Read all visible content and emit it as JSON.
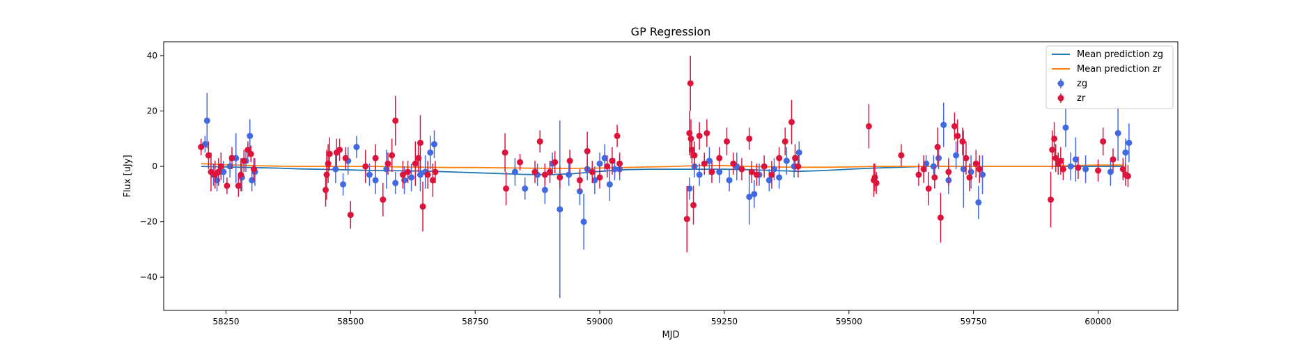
{
  "chart_data": {
    "type": "scatter",
    "title": "GP Regression",
    "xlabel": "MJD",
    "ylabel": "Flux [uJy]",
    "xlim": [
      58125,
      60160
    ],
    "ylim": [
      -52,
      45
    ],
    "xticks": [
      58250,
      58500,
      58750,
      59000,
      59250,
      59500,
      59750,
      60000
    ],
    "yticks": [
      -40,
      -20,
      0,
      20,
      40
    ],
    "grid": false,
    "legend": "top-right",
    "legend_entries": [
      "Mean prediction zg",
      "Mean prediction zr",
      "zg",
      "zr"
    ],
    "colors": {
      "mean_zg": "#1f77b4",
      "mean_zr": "#ff7f0e",
      "zg": "#4169e1",
      "zr": "#dc143c"
    },
    "series": [
      {
        "name": "Mean prediction zg",
        "kind": "line",
        "x": [
          58200,
          58250,
          58300,
          58350,
          58400,
          58450,
          58500,
          58550,
          58600,
          58650,
          58700,
          58750,
          58800,
          58850,
          58900,
          58950,
          59000,
          59050,
          59100,
          59150,
          59200,
          59250,
          59300,
          59350,
          59400,
          59450,
          59500,
          59550,
          59600,
          59650,
          59700,
          59750,
          59800,
          59850,
          59900,
          59950,
          60000,
          60050
        ],
        "y": [
          0,
          -0.2,
          -0.4,
          -0.6,
          -0.9,
          -1.1,
          -1.3,
          -1.5,
          -1.6,
          -1.7,
          -2.0,
          -2.3,
          -2.6,
          -2.9,
          -3.0,
          -2.6,
          -1.8,
          -1.2,
          -1.0,
          -1.0,
          -1.0,
          -1.0,
          -1.2,
          -1.5,
          -1.8,
          -1.5,
          -1.0,
          -0.6,
          -0.3,
          0,
          0,
          0,
          0,
          0,
          0,
          0,
          0,
          0
        ]
      },
      {
        "name": "Mean prediction zr",
        "kind": "line",
        "x": [
          58200,
          58250,
          58300,
          58350,
          58400,
          58450,
          58500,
          58550,
          58600,
          58650,
          58700,
          58750,
          58800,
          58850,
          58900,
          58950,
          59000,
          59050,
          59100,
          59150,
          59200,
          59250,
          59300,
          59350,
          59400,
          59450,
          59500,
          59550,
          59600,
          59650,
          59700,
          59750,
          59800,
          59850,
          59900,
          59950,
          60000,
          60050
        ],
        "y": [
          1.0,
          0.6,
          0.3,
          0.1,
          0.0,
          0.0,
          0.0,
          0.0,
          -0.2,
          -0.3,
          -0.4,
          -0.4,
          -0.5,
          -0.6,
          -0.7,
          -0.7,
          -0.6,
          -0.4,
          -0.2,
          0.0,
          0.3,
          0.3,
          0.0,
          -0.2,
          -0.3,
          -0.3,
          -0.2,
          0.0,
          0.0,
          0.0,
          0.0,
          0.0,
          0.0,
          0.0,
          0.0,
          0.3,
          0.5,
          0.5
        ]
      },
      {
        "name": "zg",
        "kind": "errorbar",
        "x": [
          58208,
          58212,
          58225,
          58232,
          58245,
          58258,
          58270,
          58282,
          58290,
          58298,
          58302,
          58308,
          58470,
          58485,
          58495,
          58512,
          58538,
          58550,
          58572,
          58590,
          58608,
          58622,
          58640,
          58650,
          58660,
          58668,
          58830,
          58850,
          58875,
          58890,
          58905,
          58920,
          58938,
          58960,
          58968,
          58975,
          58990,
          59000,
          59010,
          59020,
          59030,
          59040,
          59180,
          59190,
          59200,
          59220,
          59240,
          59260,
          59275,
          59300,
          59310,
          59320,
          59340,
          59350,
          59360,
          59375,
          59390,
          59400,
          59655,
          59670,
          59680,
          59690,
          59700,
          59715,
          59730,
          59745,
          59760,
          59768,
          59935,
          59945,
          59955,
          59975,
          60025,
          60040,
          60055,
          60062
        ],
        "y": [
          8,
          16.5,
          -3,
          -5,
          -2,
          0,
          3,
          -4,
          2,
          11,
          -5,
          -2,
          -1,
          -6.5,
          2,
          7,
          -3,
          -5,
          -1,
          -6,
          -5,
          -4,
          -3,
          -2,
          5,
          8,
          -2,
          -8,
          -3,
          -8.5,
          1,
          -15.5,
          -3,
          -9,
          -20,
          -1,
          -5,
          1,
          3,
          -6.5,
          -1,
          -1,
          -8,
          0,
          -3,
          2,
          -2,
          -5,
          0,
          -11,
          -10,
          -3,
          -5,
          -1,
          -4,
          2,
          0,
          5,
          1,
          0,
          3,
          15,
          -5,
          4,
          -1,
          -2,
          -13,
          -3,
          14,
          0,
          2.5,
          -1,
          -2,
          12,
          5,
          8.5
        ],
        "yerr": [
          3,
          10,
          4,
          4,
          4,
          4,
          9,
          5,
          4,
          6,
          4,
          5,
          5,
          4,
          5,
          4,
          4,
          5,
          7,
          4,
          5,
          5,
          6,
          6,
          6,
          5,
          5,
          4,
          4,
          5,
          4,
          32,
          4,
          5,
          10,
          4,
          5,
          4,
          5,
          6,
          4,
          4,
          4,
          4,
          4,
          5,
          4,
          4,
          5,
          10,
          5,
          4,
          4,
          4,
          4,
          5,
          4,
          4,
          3,
          4,
          4,
          8,
          5,
          5,
          14,
          6,
          6,
          7,
          7,
          5,
          8,
          5,
          5,
          10,
          5,
          7
        ]
      },
      {
        "name": "zr",
        "kind": "errorbar",
        "x": [
          58200,
          58215,
          58220,
          58228,
          58235,
          58240,
          58252,
          58262,
          58275,
          58280,
          58286,
          58294,
          58300,
          58306,
          58450,
          58452,
          58455,
          58458,
          58472,
          58478,
          58490,
          58500,
          58530,
          58550,
          58565,
          58575,
          58583,
          58590,
          58605,
          58615,
          58630,
          58636,
          58640,
          58645,
          58655,
          58665,
          58670,
          58810,
          58812,
          58840,
          58870,
          58880,
          58890,
          58900,
          58910,
          58920,
          58940,
          58960,
          58975,
          58985,
          59000,
          59015,
          59025,
          59035,
          59040,
          59175,
          59180,
          59182,
          59183,
          59185,
          59188,
          59190,
          59200,
          59210,
          59215,
          59225,
          59240,
          59255,
          59268,
          59285,
          59300,
          59305,
          59315,
          59330,
          59345,
          59360,
          59372,
          59385,
          59392,
          59398,
          59540,
          59550,
          59552,
          59555,
          59605,
          59640,
          59650,
          59660,
          59672,
          59678,
          59684,
          59700,
          59712,
          59718,
          59728,
          59735,
          59742,
          59755,
          59762,
          59905,
          59908,
          59912,
          59915,
          59920,
          59925,
          59930,
          59960,
          60000,
          60010,
          60030,
          60050,
          60055,
          60060
        ],
        "y": [
          7,
          4,
          -2,
          -3,
          -2,
          0,
          -7,
          3,
          -7,
          -3,
          2,
          6,
          4.5,
          -1,
          -8.5,
          -3,
          1,
          4.5,
          5,
          6,
          3,
          -17.5,
          0,
          3,
          -12,
          1,
          4,
          16.5,
          -3,
          -2,
          1,
          3,
          8.5,
          -14.5,
          -3,
          -5,
          -2,
          5,
          -8,
          1.5,
          -2,
          9,
          -3,
          -2,
          1.5,
          -4,
          2,
          -5,
          5.5,
          -2,
          -4,
          0,
          2,
          11,
          1,
          -19,
          12,
          30,
          10,
          6,
          -14,
          4,
          11,
          1,
          12,
          -2,
          3,
          9,
          1,
          -1,
          10,
          -2,
          -3,
          0,
          -3,
          3,
          9,
          16,
          3,
          0,
          14.5,
          -5,
          -4,
          -6,
          4,
          -3,
          -1,
          -8,
          -4,
          7,
          -18.5,
          -2,
          14.5,
          11,
          9,
          3,
          -4,
          1,
          -1,
          -12,
          6,
          10,
          3,
          1,
          2,
          -1,
          -0.5,
          -1.5,
          9,
          2.5,
          -1,
          -3,
          -3.5
        ],
        "yerr": [
          3,
          5,
          7,
          5,
          5,
          5,
          3,
          4,
          4,
          6,
          4,
          3,
          3,
          4,
          6,
          9,
          7,
          6,
          5,
          4,
          4,
          5,
          6,
          5,
          6,
          4,
          6,
          9,
          5,
          4,
          8,
          5,
          10,
          9,
          5,
          6,
          4,
          7,
          6,
          3,
          4,
          4,
          4,
          4,
          4,
          4,
          4,
          4,
          7,
          4,
          4,
          4,
          5,
          4,
          4,
          12,
          8,
          10,
          7,
          5,
          7,
          5,
          5,
          4,
          5,
          4,
          4,
          5,
          4,
          4,
          4,
          4,
          4,
          4,
          5,
          4,
          5,
          8,
          5,
          4,
          8,
          6,
          5,
          4,
          4,
          4,
          5,
          6,
          4,
          7,
          9,
          5,
          5,
          6,
          5,
          6,
          5,
          5,
          5,
          10,
          7,
          6,
          5,
          4,
          5,
          4,
          4,
          4,
          5,
          4,
          4,
          4,
          4
        ]
      }
    ]
  }
}
